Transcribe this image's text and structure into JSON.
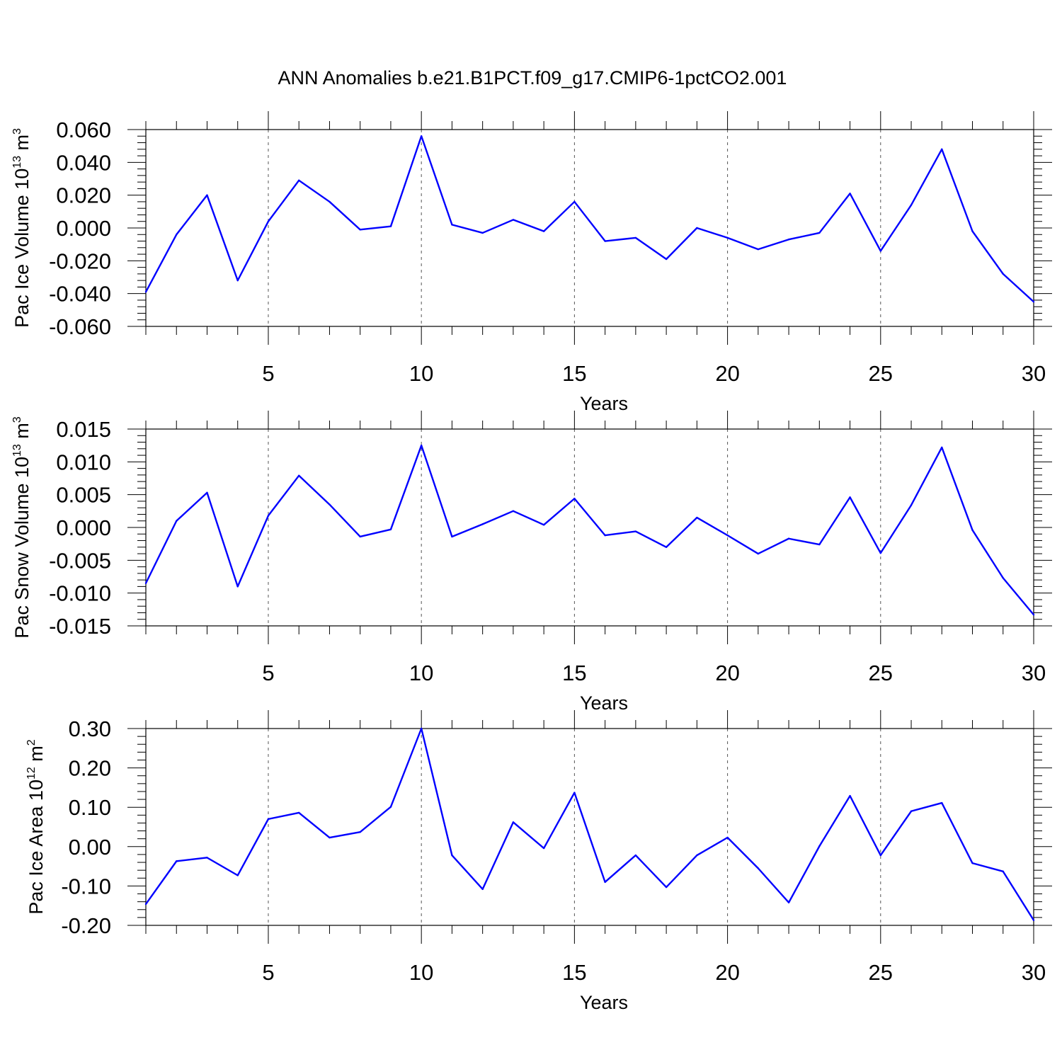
{
  "title": "ANN Anomalies b.e21.B1PCT.f09_g17.CMIP6-1pctCO2.001",
  "colors": {
    "series": "#0000ff",
    "axes": "#000000",
    "grid": "#555555"
  },
  "chart_data": [
    {
      "type": "line",
      "ylabel_main": "Pac Ice Volume 10",
      "ylabel_exp": "13",
      "ylabel_unit": " m",
      "ylabel_unit_exp": "3",
      "xlabel": "Years",
      "xlim": [
        1,
        30
      ],
      "ylim": [
        -0.06,
        0.06
      ],
      "xticks": [
        5,
        10,
        15,
        20,
        25,
        30
      ],
      "yticks": [
        "0.060",
        "0.040",
        "0.020",
        "0.000",
        "-0.020",
        "-0.040",
        "-0.060"
      ],
      "ytick_values": [
        0.06,
        0.04,
        0.02,
        0.0,
        -0.02,
        -0.04,
        -0.06
      ],
      "ymajor_step": 0.02,
      "yminor_step": 0.004,
      "x": [
        1,
        2,
        3,
        4,
        5,
        6,
        7,
        8,
        9,
        10,
        11,
        12,
        13,
        14,
        15,
        16,
        17,
        18,
        19,
        20,
        21,
        22,
        23,
        24,
        25,
        26,
        27,
        28,
        29,
        30
      ],
      "values": [
        -0.039,
        -0.004,
        0.02,
        -0.032,
        0.004,
        0.029,
        0.016,
        -0.001,
        0.001,
        0.056,
        0.002,
        -0.003,
        0.005,
        -0.002,
        0.016,
        -0.008,
        -0.006,
        -0.019,
        0.0,
        -0.006,
        -0.013,
        -0.007,
        -0.003,
        0.021,
        -0.014,
        0.014,
        0.048,
        -0.002,
        -0.028,
        -0.045
      ]
    },
    {
      "type": "line",
      "ylabel_main": "Pac Snow Volume 10",
      "ylabel_exp": "13",
      "ylabel_unit": " m",
      "ylabel_unit_exp": "3",
      "xlabel": "Years",
      "xlim": [
        1,
        30
      ],
      "ylim": [
        -0.015,
        0.015
      ],
      "xticks": [
        5,
        10,
        15,
        20,
        25,
        30
      ],
      "yticks": [
        "0.015",
        "0.010",
        "0.005",
        "0.000",
        "-0.005",
        "-0.010",
        "-0.015"
      ],
      "ytick_values": [
        0.015,
        0.01,
        0.005,
        0.0,
        -0.005,
        -0.01,
        -0.015
      ],
      "ymajor_step": 0.005,
      "yminor_step": 0.001,
      "x": [
        1,
        2,
        3,
        4,
        5,
        6,
        7,
        8,
        9,
        10,
        11,
        12,
        13,
        14,
        15,
        16,
        17,
        18,
        19,
        20,
        21,
        22,
        23,
        24,
        25,
        26,
        27,
        28,
        29,
        30
      ],
      "values": [
        -0.0085,
        0.001,
        0.0053,
        -0.009,
        0.0018,
        0.0079,
        0.0035,
        -0.0014,
        -0.0003,
        0.0125,
        -0.0014,
        0.0005,
        0.0025,
        0.0004,
        0.0044,
        -0.0012,
        -0.0006,
        -0.003,
        0.0015,
        -0.0012,
        -0.004,
        -0.0017,
        -0.0026,
        0.0046,
        -0.0039,
        0.0034,
        0.0122,
        -0.0004,
        -0.0077,
        -0.0133
      ]
    },
    {
      "type": "line",
      "ylabel_main": "Pac Ice Area 10",
      "ylabel_exp": "12",
      "ylabel_unit": " m",
      "ylabel_unit_exp": "2",
      "xlabel": "Years",
      "xlim": [
        1,
        30
      ],
      "ylim": [
        -0.2,
        0.3
      ],
      "xticks": [
        5,
        10,
        15,
        20,
        25,
        30
      ],
      "yticks": [
        "0.30",
        "0.20",
        "0.10",
        "0.00",
        "-0.10",
        "-0.20"
      ],
      "ytick_values": [
        0.3,
        0.2,
        0.1,
        0.0,
        -0.1,
        -0.2
      ],
      "ymajor_step": 0.1,
      "yminor_step": 0.02,
      "x": [
        1,
        2,
        3,
        4,
        5,
        6,
        7,
        8,
        9,
        10,
        11,
        12,
        13,
        14,
        15,
        16,
        17,
        18,
        19,
        20,
        21,
        22,
        23,
        24,
        25,
        26,
        27,
        28,
        29,
        30
      ],
      "values": [
        -0.146,
        -0.037,
        -0.028,
        -0.073,
        0.07,
        0.086,
        0.023,
        0.037,
        0.101,
        0.3,
        -0.022,
        -0.108,
        0.062,
        -0.004,
        0.137,
        -0.09,
        -0.022,
        -0.103,
        -0.022,
        0.023,
        -0.055,
        -0.142,
        0.001,
        0.129,
        -0.022,
        0.09,
        0.111,
        -0.042,
        -0.063,
        -0.187
      ]
    }
  ]
}
